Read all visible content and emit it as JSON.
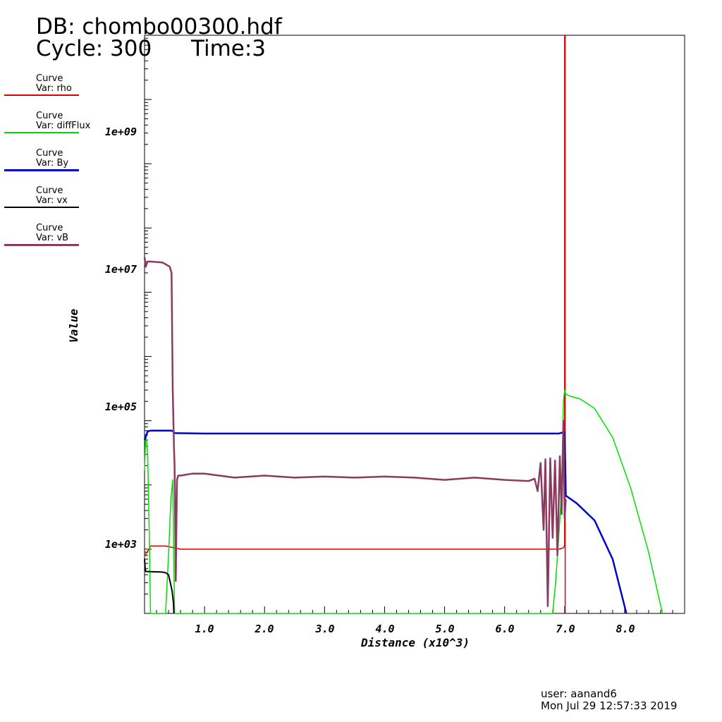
{
  "header": {
    "db": "DB: chombo00300.hdf",
    "cycle": "Cycle: 300",
    "time": "Time:3"
  },
  "legend": [
    {
      "title": "Curve",
      "var": "Var: rho",
      "color": "#dd0000"
    },
    {
      "title": "Curve",
      "var": "Var: diffFlux",
      "color": "#00e000"
    },
    {
      "title": "Curve",
      "var": "Var: By",
      "color": "#0000cc"
    },
    {
      "title": "Curve",
      "var": "Var: vx",
      "color": "#000000"
    },
    {
      "title": "Curve",
      "var": "Var: vB",
      "color": "#8b3a62"
    }
  ],
  "footer": {
    "user": "user: aanand6",
    "date": "Mon Jul 29 12:57:33 2019"
  },
  "chart_data": {
    "type": "line",
    "xlabel": "Distance (x10^3)",
    "ylabel": "Value",
    "xlim": [
      0,
      9.0
    ],
    "ylim": [
      100,
      100000000000
    ],
    "yscale": "log",
    "xticks": [
      1.0,
      2.0,
      3.0,
      4.0,
      5.0,
      6.0,
      7.0,
      8.0
    ],
    "xtick_labels": [
      "1.0",
      "2.0",
      "3.0",
      "4.0",
      "5.0",
      "6.0",
      "7.0",
      "8.0"
    ],
    "yticks": [
      1000,
      100000,
      10000000,
      1000000000
    ],
    "ytick_labels": [
      "1e+03",
      "1e+05",
      "1e+07",
      "1e+09"
    ],
    "series": [
      {
        "name": "rho",
        "color": "#dd0000",
        "x": [
          0.0,
          0.06,
          0.1,
          0.35,
          0.5,
          0.6,
          1.0,
          3.0,
          5.0,
          6.9,
          6.98,
          7.0,
          7.0,
          7.01,
          7.01
        ],
        "y": [
          780,
          950,
          1120,
          1120,
          1050,
          1000,
          1000,
          1000,
          1000,
          1000,
          1050,
          1150,
          100000000000,
          100000000000,
          100
        ]
      },
      {
        "name": "diffFlux",
        "color": "#00e000",
        "x": [
          0.0,
          0.02,
          0.05,
          0.08,
          0.1,
          0.15,
          0.3,
          0.35,
          0.4,
          0.44,
          0.47,
          0.49,
          0.5,
          6.8,
          6.85,
          6.9,
          6.95,
          6.98,
          7.0,
          7.02,
          7.1,
          7.25,
          7.5,
          7.8,
          8.1,
          8.4,
          8.63
        ],
        "y": [
          17000,
          60000,
          35000,
          1500,
          100,
          60,
          60,
          100,
          800,
          6000,
          12000,
          500,
          60,
          80,
          300,
          1500,
          8000,
          200000,
          300000,
          260000,
          240000,
          220000,
          155000,
          55000,
          9000,
          900,
          100
        ]
      },
      {
        "name": "By",
        "color": "#0000cc",
        "x": [
          0.0,
          0.05,
          0.1,
          0.45,
          0.48,
          0.5,
          1.0,
          3.0,
          5.0,
          6.9,
          6.98,
          7.0,
          7.02,
          7.2,
          7.5,
          7.8,
          8.03
        ],
        "y": [
          50000,
          68000,
          70000,
          70000,
          68000,
          64000,
          63000,
          63000,
          63000,
          63000,
          66000,
          67000,
          6800,
          5200,
          2800,
          700,
          100
        ]
      },
      {
        "name": "vx",
        "color": "#000000",
        "x": [
          0.0,
          0.01,
          0.02,
          0.3,
          0.35,
          0.4,
          0.43,
          0.46,
          0.48,
          0.49
        ],
        "y": [
          700,
          500,
          450,
          440,
          430,
          400,
          300,
          220,
          150,
          80
        ]
      },
      {
        "name": "vB",
        "color": "#8b3a62",
        "x": [
          0.0,
          0.02,
          0.05,
          0.1,
          0.3,
          0.42,
          0.45,
          0.47,
          0.49,
          0.5,
          0.52,
          0.54,
          0.56,
          0.6,
          0.8,
          1.0,
          1.5,
          2.0,
          2.5,
          3.0,
          3.5,
          4.0,
          4.5,
          5.0,
          5.5,
          6.0,
          6.4,
          6.5,
          6.55,
          6.6,
          6.65,
          6.68,
          6.72,
          6.76,
          6.8,
          6.84,
          6.88,
          6.92,
          6.95,
          6.98,
          7.0,
          7.02
        ],
        "y": [
          35000000,
          25000000,
          30000000,
          30000000,
          29000000,
          25000000,
          20000000,
          300000,
          40000,
          20000,
          320,
          12000,
          14000,
          14000,
          15000,
          15000,
          13000,
          14000,
          13000,
          13500,
          13000,
          13500,
          13000,
          12000,
          13000,
          12000,
          11500,
          12500,
          8000,
          22000,
          2000,
          25000,
          130,
          26000,
          1500,
          24000,
          800,
          28000,
          3500,
          100000,
          3000,
          6000
        ]
      }
    ]
  }
}
